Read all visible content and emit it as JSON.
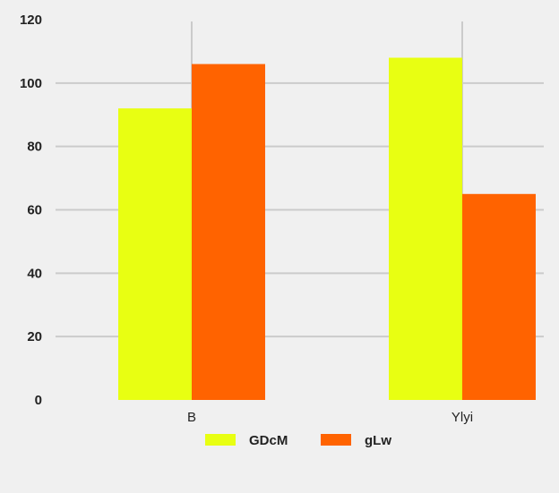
{
  "chart_data": {
    "type": "bar",
    "categories": [
      "B",
      "Ylyi"
    ],
    "series": [
      {
        "name": "GDcM",
        "values": [
          92,
          108
        ],
        "color": "#e8ff12"
      },
      {
        "name": "gLw",
        "values": [
          106,
          65
        ],
        "color": "#ff6300"
      }
    ],
    "ylim": [
      0,
      120
    ],
    "yticks": [
      0,
      20,
      40,
      60,
      80,
      100,
      120
    ],
    "grid": true,
    "legend_position": "bottom-center",
    "title": "",
    "xlabel": "",
    "ylabel": ""
  }
}
